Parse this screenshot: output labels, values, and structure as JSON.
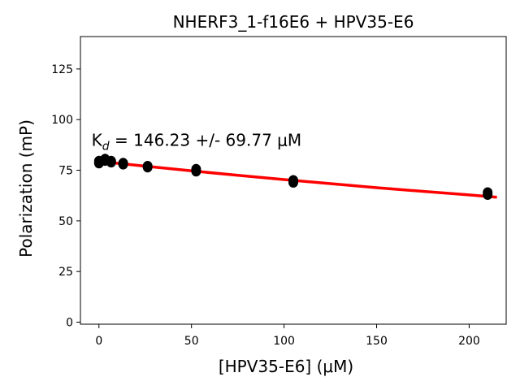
{
  "chart_data": {
    "type": "scatter",
    "title": "NHERF3_1-f16E6 + HPV35-E6",
    "xlabel": "[HPV35-E6] (μM)",
    "ylabel": "Polarization (mP)",
    "xlim": [
      -10,
      220
    ],
    "ylim": [
      -1,
      141
    ],
    "xticks": [
      0,
      50,
      100,
      150,
      200
    ],
    "yticks": [
      0,
      25,
      50,
      75,
      100,
      125
    ],
    "grid": false,
    "annotation": {
      "prefix": "K",
      "subscript": "d",
      "text": " = 146.23 +/- 69.77 μM",
      "x": -4,
      "y": 87
    },
    "series": [
      {
        "kind": "points",
        "color": "#000000",
        "points": [
          {
            "x": 0,
            "y": 78.5
          },
          {
            "x": 0,
            "y": 79.5
          },
          {
            "x": 3.3,
            "y": 80.5
          },
          {
            "x": 3.3,
            "y": 79.8
          },
          {
            "x": 6.6,
            "y": 79.5
          },
          {
            "x": 6.6,
            "y": 79
          },
          {
            "x": 13.1,
            "y": 78.5
          },
          {
            "x": 13.1,
            "y": 78
          },
          {
            "x": 26.3,
            "y": 77
          },
          {
            "x": 26.3,
            "y": 76.5
          },
          {
            "x": 52.5,
            "y": 75.5
          },
          {
            "x": 52.5,
            "y": 74.5
          },
          {
            "x": 105,
            "y": 70
          },
          {
            "x": 105,
            "y": 69
          },
          {
            "x": 210,
            "y": 64
          },
          {
            "x": 210,
            "y": 63
          }
        ]
      },
      {
        "kind": "fit",
        "color": "#ff0000",
        "points": [
          {
            "x": 0,
            "y": 79.4
          },
          {
            "x": 25,
            "y": 77.0
          },
          {
            "x": 50,
            "y": 74.7
          },
          {
            "x": 75,
            "y": 72.5
          },
          {
            "x": 100,
            "y": 70.4
          },
          {
            "x": 125,
            "y": 68.4
          },
          {
            "x": 150,
            "y": 66.4
          },
          {
            "x": 175,
            "y": 64.6
          },
          {
            "x": 200,
            "y": 62.8
          },
          {
            "x": 215,
            "y": 61.7
          }
        ]
      }
    ]
  }
}
